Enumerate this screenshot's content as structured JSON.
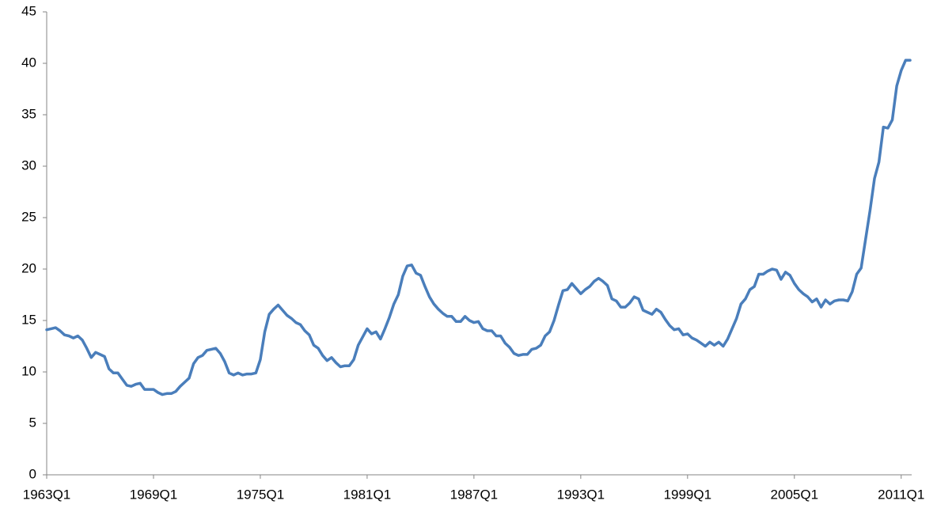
{
  "chart_data": {
    "type": "line",
    "color": "#4a7ebb",
    "categories": [
      "1963Q1",
      null,
      null,
      null,
      null,
      null,
      null,
      null,
      null,
      null,
      null,
      null,
      null,
      null,
      null,
      null,
      null,
      null,
      null,
      null,
      null,
      null,
      null,
      null,
      "1969Q1",
      null,
      null,
      null,
      null,
      null,
      null,
      null,
      null,
      null,
      null,
      null,
      null,
      null,
      null,
      null,
      null,
      null,
      null,
      null,
      null,
      null,
      null,
      null,
      "1975Q1",
      null,
      null,
      null,
      null,
      null,
      null,
      null,
      null,
      null,
      null,
      null,
      null,
      null,
      null,
      null,
      null,
      null,
      null,
      null,
      null,
      null,
      null,
      null,
      "1981Q1",
      null,
      null,
      null,
      null,
      null,
      null,
      null,
      null,
      null,
      null,
      null,
      null,
      null,
      null,
      null,
      null,
      null,
      null,
      null,
      null,
      null,
      null,
      null,
      "1987Q1",
      null,
      null,
      null,
      null,
      null,
      null,
      null,
      null,
      null,
      null,
      null,
      null,
      null,
      null,
      null,
      null,
      null,
      null,
      null,
      null,
      null,
      null,
      null,
      "1993Q1",
      null,
      null,
      null,
      null,
      null,
      null,
      null,
      null,
      null,
      null,
      null,
      null,
      null,
      null,
      null,
      null,
      null,
      null,
      null,
      null,
      null,
      null,
      null,
      "1999Q1",
      null,
      null,
      null,
      null,
      null,
      null,
      null,
      null,
      null,
      null,
      null,
      null,
      null,
      null,
      null,
      null,
      null,
      null,
      null,
      null,
      null,
      null,
      null,
      "2005Q1",
      null,
      null,
      null,
      null,
      null,
      null,
      null,
      null,
      null,
      null,
      null,
      null,
      null,
      null,
      null,
      null,
      null,
      null,
      null,
      null,
      null,
      null,
      null,
      "2011Q1",
      null,
      null
    ],
    "values": [
      14.1,
      14.2,
      14.3,
      14.0,
      13.6,
      13.5,
      13.3,
      13.5,
      13.1,
      12.3,
      11.4,
      11.9,
      11.7,
      11.5,
      10.3,
      9.9,
      9.9,
      9.3,
      8.7,
      8.6,
      8.8,
      8.9,
      8.3,
      8.3,
      8.3,
      8.0,
      7.8,
      7.9,
      7.9,
      8.1,
      8.6,
      9.0,
      9.4,
      10.8,
      11.4,
      11.6,
      12.1,
      12.2,
      12.3,
      11.8,
      11.0,
      9.9,
      9.7,
      9.9,
      9.7,
      9.8,
      9.8,
      9.9,
      11.2,
      13.9,
      15.6,
      16.1,
      16.5,
      16.0,
      15.5,
      15.2,
      14.8,
      14.6,
      14.0,
      13.6,
      12.6,
      12.3,
      11.6,
      11.1,
      11.4,
      10.9,
      10.5,
      10.6,
      10.6,
      11.2,
      12.6,
      13.4,
      14.2,
      13.7,
      13.9,
      13.2,
      14.2,
      15.3,
      16.6,
      17.5,
      19.3,
      20.3,
      20.4,
      19.6,
      19.4,
      18.3,
      17.3,
      16.6,
      16.1,
      15.7,
      15.4,
      15.4,
      14.9,
      14.9,
      15.4,
      15.0,
      14.8,
      14.9,
      14.2,
      14.0,
      14.0,
      13.5,
      13.5,
      12.8,
      12.4,
      11.8,
      11.6,
      11.7,
      11.7,
      12.2,
      12.3,
      12.6,
      13.5,
      13.9,
      15.0,
      16.5,
      17.9,
      18.0,
      18.6,
      18.1,
      17.6,
      18.0,
      18.3,
      18.8,
      19.1,
      18.8,
      18.4,
      17.1,
      16.9,
      16.3,
      16.3,
      16.7,
      17.3,
      17.1,
      16.0,
      15.8,
      15.6,
      16.1,
      15.8,
      15.1,
      14.5,
      14.1,
      14.2,
      13.6,
      13.7,
      13.3,
      13.1,
      12.8,
      12.5,
      12.9,
      12.6,
      12.9,
      12.5,
      13.2,
      14.2,
      15.2,
      16.6,
      17.1,
      18.0,
      18.3,
      19.5,
      19.5,
      19.8,
      20.0,
      19.9,
      19.0,
      19.7,
      19.4,
      18.6,
      18.0,
      17.6,
      17.3,
      16.8,
      17.1,
      16.3,
      17.0,
      16.6,
      16.9,
      17.0,
      17.0,
      16.9,
      17.8,
      19.5,
      20.1,
      22.9,
      25.7,
      28.8,
      30.4,
      33.8,
      33.7,
      34.5,
      37.8,
      39.3,
      40.3,
      40.3
    ],
    "ylim": [
      0,
      45
    ],
    "yticks": [
      0,
      5,
      10,
      15,
      20,
      25,
      30,
      35,
      40,
      45
    ],
    "grid": false
  }
}
